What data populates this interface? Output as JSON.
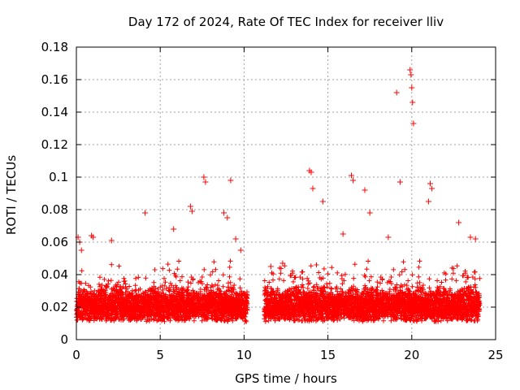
{
  "chart_data": {
    "type": "scatter",
    "title": "Day 172 of 2024, Rate Of TEC Index for receiver lliv",
    "xlabel": "GPS time / hours",
    "ylabel": "ROTI / TECUs",
    "xlim": [
      0,
      25
    ],
    "ylim": [
      0,
      0.18
    ],
    "x_ticks": [
      0,
      5,
      10,
      15,
      20,
      25
    ],
    "x_tick_labels": [
      "0",
      "5",
      "10",
      "15",
      "20",
      "25"
    ],
    "y_ticks": [
      0,
      0.02,
      0.04,
      0.06,
      0.08,
      0.1,
      0.12,
      0.14,
      0.16,
      0.18
    ],
    "y_tick_labels": [
      "0",
      "0.02",
      "0.04",
      "0.06",
      "0.08",
      "0.1",
      "0.12",
      "0.14",
      "0.16",
      "0.18"
    ],
    "grid": true,
    "marker": "+",
    "color": "#ff0000",
    "series": [
      {
        "name": "ROTI",
        "note": "dense background band ~0.01-0.035 TECU/min from 0-10.2 h and 11.2-24 h (data gap 10.2-11.2 h); notable outliers listed",
        "x": [
          0.1,
          0.2,
          0.3,
          0.9,
          1.0,
          2.1,
          4.1,
          5.8,
          6.8,
          6.9,
          7.6,
          7.7,
          8.8,
          9.0,
          9.2,
          9.5,
          9.8,
          11.6,
          12.3,
          13.9,
          14.0,
          14.1,
          14.7,
          15.9,
          16.4,
          16.5,
          17.2,
          17.5,
          18.6,
          19.1,
          19.3,
          19.9,
          19.95,
          20.0,
          20.05,
          20.1,
          21.0,
          21.1,
          21.2,
          22.8,
          23.5,
          23.8
        ],
        "y": [
          0.063,
          0.06,
          0.055,
          0.064,
          0.063,
          0.061,
          0.078,
          0.068,
          0.082,
          0.079,
          0.1,
          0.097,
          0.078,
          0.075,
          0.098,
          0.062,
          0.055,
          0.045,
          0.047,
          0.104,
          0.103,
          0.093,
          0.085,
          0.065,
          0.101,
          0.098,
          0.092,
          0.078,
          0.063,
          0.152,
          0.097,
          0.166,
          0.163,
          0.155,
          0.146,
          0.133,
          0.085,
          0.096,
          0.093,
          0.072,
          0.063,
          0.062
        ]
      }
    ]
  }
}
